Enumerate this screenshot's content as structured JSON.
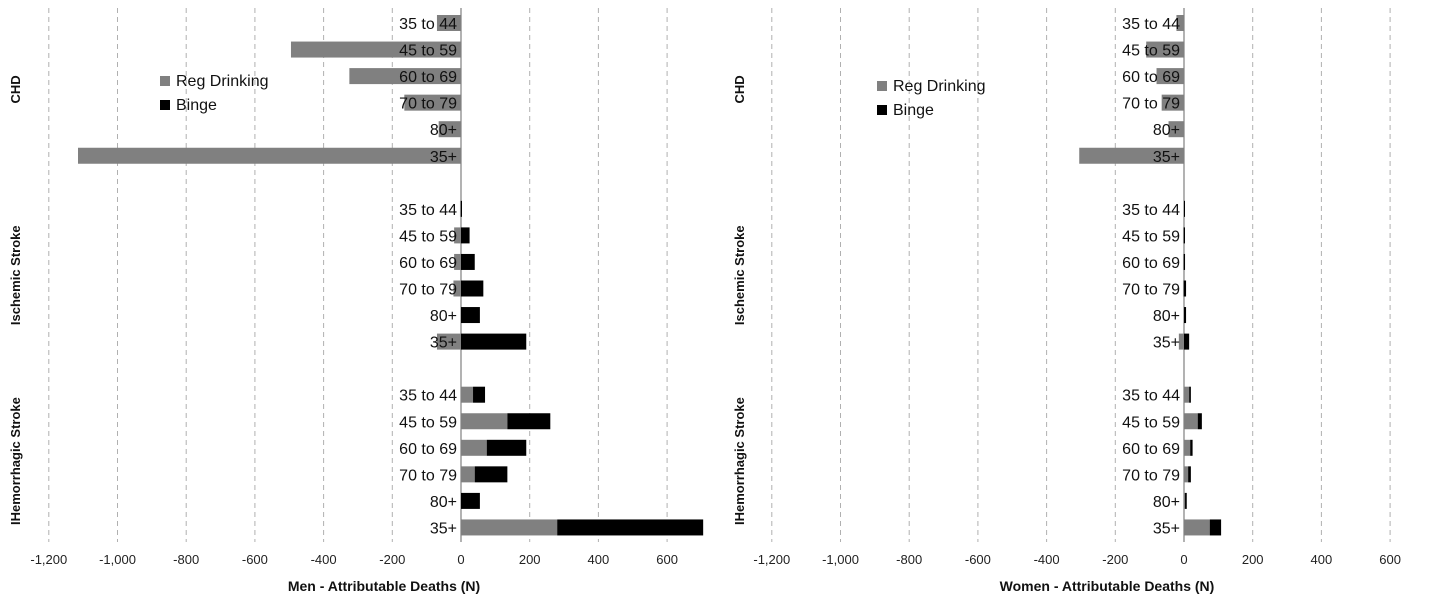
{
  "colors": {
    "reg": "#808080",
    "binge": "#000000",
    "grid": "#b0b0b0",
    "axis": "#808080"
  },
  "chart_data": [
    {
      "type": "bar",
      "orientation": "horizontal",
      "stacking": "diverging",
      "xlabel": "Men - Attributable Deaths (N)",
      "xlim": [
        -1200,
        700
      ],
      "xticks": [
        -1200,
        -1000,
        -800,
        -600,
        -400,
        -200,
        0,
        200,
        400,
        600
      ],
      "xtick_labels": [
        "-1,200",
        "-1,000",
        "-800",
        "-600",
        "-400",
        "-200",
        "0",
        "200",
        "400",
        "600"
      ],
      "grid": true,
      "legend": {
        "position": "top-left",
        "entries": [
          "Reg Drinking",
          "Binge"
        ]
      },
      "groups": [
        {
          "name": "CHD",
          "categories": [
            "35 to 44",
            "45 to 59",
            "60 to 69",
            "70 to 79",
            "80+",
            "35+"
          ],
          "series": [
            {
              "name": "Reg Drinking",
              "values": [
                -70,
                -495,
                -325,
                -165,
                -65,
                -1115
              ]
            },
            {
              "name": "Binge",
              "values": [
                0,
                0,
                0,
                0,
                0,
                0
              ]
            }
          ]
        },
        {
          "name": "Ischemic Stroke",
          "categories": [
            "35 to 44",
            "45 to 59",
            "60 to 69",
            "70 to 79",
            "80+",
            "35+"
          ],
          "series": [
            {
              "name": "Reg Drinking",
              "values": [
                -3,
                -20,
                -20,
                -22,
                0,
                -70
              ]
            },
            {
              "name": "Binge",
              "values": [
                2,
                25,
                40,
                65,
                55,
                190
              ]
            }
          ]
        },
        {
          "name": "IHemorrhagic Stroke",
          "categories": [
            "35 to 44",
            "45 to 59",
            "60 to 69",
            "70 to 79",
            "80+",
            "35+"
          ],
          "series": [
            {
              "name": "Reg Drinking",
              "values": [
                35,
                135,
                75,
                40,
                0,
                280
              ]
            },
            {
              "name": "Binge",
              "values": [
                35,
                125,
                115,
                95,
                55,
                425
              ]
            }
          ]
        }
      ]
    },
    {
      "type": "bar",
      "orientation": "horizontal",
      "stacking": "diverging",
      "xlabel": "Women - Attributable Deaths (N)",
      "xlim": [
        -1200,
        700
      ],
      "xticks": [
        -1200,
        -1000,
        -800,
        -600,
        -400,
        -200,
        0,
        200,
        400,
        600
      ],
      "xtick_labels": [
        "-1,200",
        "-1,000",
        "-800",
        "-600",
        "-400",
        "-200",
        "0",
        "200",
        "400",
        "600"
      ],
      "grid": true,
      "legend": {
        "position": "top-left",
        "entries": [
          "Reg Drinking",
          "Binge"
        ]
      },
      "groups": [
        {
          "name": "CHD",
          "categories": [
            "35 to 44",
            "45 to 59",
            "60 to 69",
            "70 to 79",
            "80+",
            "35+"
          ],
          "series": [
            {
              "name": "Reg Drinking",
              "values": [
                -22,
                -110,
                -80,
                -65,
                -45,
                -305
              ]
            },
            {
              "name": "Binge",
              "values": [
                0,
                0,
                0,
                0,
                0,
                0
              ]
            }
          ]
        },
        {
          "name": "Ischemic Stroke",
          "categories": [
            "35 to 44",
            "45 to 59",
            "60 to 69",
            "70 to 79",
            "80+",
            "35+"
          ],
          "series": [
            {
              "name": "Reg Drinking",
              "values": [
                -1,
                -3,
                -3,
                -3,
                0,
                -15
              ]
            },
            {
              "name": "Binge",
              "values": [
                1,
                2,
                3,
                6,
                6,
                15
              ]
            }
          ]
        },
        {
          "name": "IHemorrhagic Stroke",
          "categories": [
            "35 to 44",
            "45 to 59",
            "60 to 69",
            "70 to 79",
            "80+",
            "35+"
          ],
          "series": [
            {
              "name": "Reg Drinking",
              "values": [
                15,
                40,
                18,
                12,
                3,
                75
              ]
            },
            {
              "name": "Binge",
              "values": [
                5,
                12,
                7,
                8,
                5,
                33
              ]
            }
          ]
        }
      ]
    }
  ]
}
